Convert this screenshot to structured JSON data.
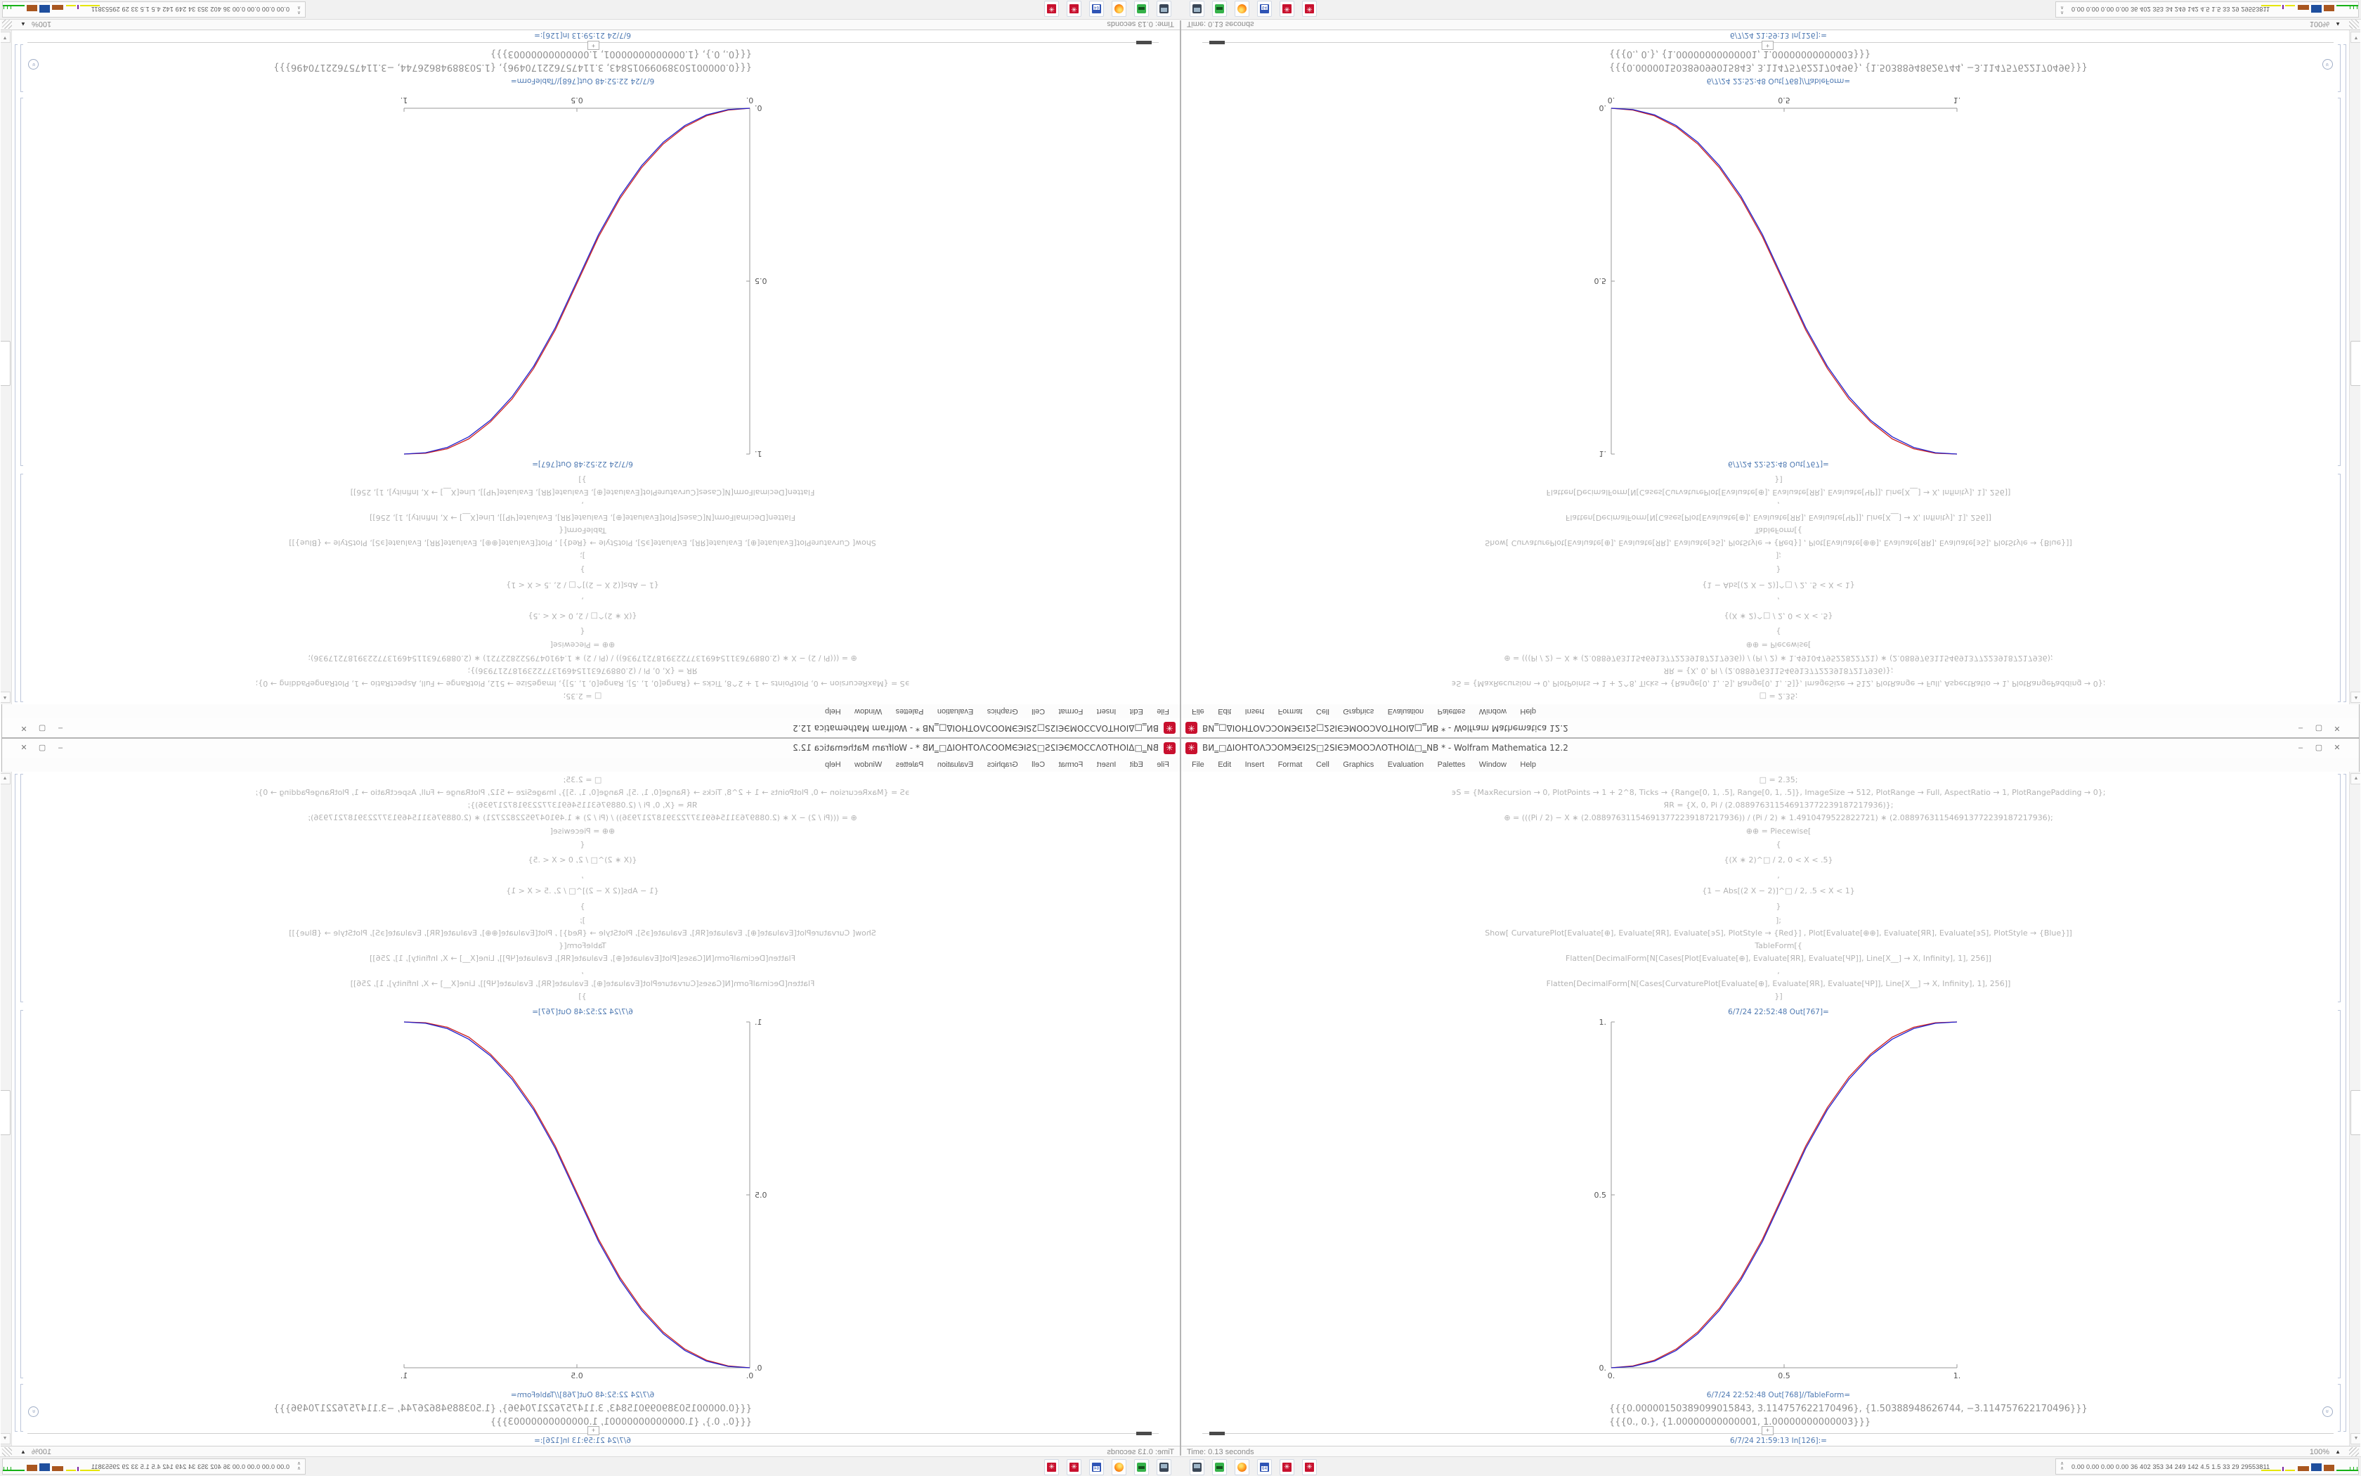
{
  "window": {
    "title": "ВИ‗□ΔΙΟΗΤΟΛƆƆΟΜЭЄΙ2Ѕ□2ЅΙЄЭΜΟΟƆΛΟΤΗΟΙΔ□‗NB * - Wolfram Mathematica 12.2",
    "menu": [
      "File",
      "Edit",
      "Insert",
      "Format",
      "Cell",
      "Graphics",
      "Evaluation",
      "Palettes",
      "Window",
      "Help"
    ],
    "code_lines": [
      "□ = 2.35;",
      "϶Ѕ = {MaxRecursion → 0, PlotPoints → 1 + 2^8, Ticks → {Range[0, 1, .5], Range[0, 1, .5]}, ImageSize → 512, PlotRange → Full, AspectRatio → 1, PlotRangePadding → 0};",
      "ЯR = {X, 0, Pi / (2.088976311546913772239187217936)};",
      "⊕ = (((Pi / 2) − X ∗ (2.088976311546913772239187217936)) / (Pi / 2) ∗ 1.4910479522822721) ∗ (2.088976311546913772239187217936);",
      "⊕⊕ = Piecewise[",
      "{",
      "{(X ∗ 2)^□ / 2, 0 < X < .5}",
      ",",
      "{1 − Abs[(2 X − 2)]^□ / 2, .5 < X < 1}",
      "}",
      "];",
      "Show[   CurvaturePlot[Evaluate[⊕], Evaluate[ЯR], Evaluate[϶Ѕ], PlotStyle → {Red}]   ,   Plot[Evaluate[⊕⊕], Evaluate[ЯR], Evaluate[϶Ѕ], PlotStyle → {Blue}]]",
      "TableForm[{",
      "Flatten[DecimalForm[N[Cases[Plot[Evaluate[⊕], Evaluate[ЯR], Evaluate[ЧP]], Line[X__] → X, Infinity], 1], 256]]",
      ",",
      "Flatten[DecimalForm[N[Cases[CurvaturePlot[Evaluate[⊕], Evaluate[ЯR], Evaluate[ЧP]], Line[X__] → X, Infinity], 1], 256]]",
      "}]"
    ],
    "out1_tag": "6/7/24 22:52:48 Out[767]=",
    "out2_tag": "6/7/24 22:52:48 Out[768]//TableForm=",
    "out2_rows": [
      "{{{0.00000150389099015843, 3.114757622170496}, {1.50388948626744, −3.114757622170496}}}",
      "{{{0., 0.}, {1.00000000000001, 1.00000000000003}}}"
    ],
    "next_in_tag": "6/7/24 21:59:13 In[126]:=",
    "status": {
      "time": "Time: 0.13 seconds",
      "zoom": "100%"
    },
    "plot": {
      "type": "line",
      "xlim": [
        0,
        1
      ],
      "ylim": [
        0,
        1
      ],
      "x_ticks": [
        "0.",
        "0.5",
        "1."
      ],
      "y_ticks": [
        "0.",
        "0.5",
        "1."
      ],
      "grid": false,
      "legend": "none",
      "series": [
        {
          "name": "CurvaturePlot (Red)",
          "color": "#cc2020",
          "points": [
            [
              0,
              0
            ],
            [
              0.0625,
              0.0052
            ],
            [
              0.125,
              0.0219
            ],
            [
              0.1875,
              0.0538
            ],
            [
              0.25,
              0.103
            ],
            [
              0.3125,
              0.1715
            ],
            [
              0.375,
              0.2605
            ],
            [
              0.4375,
              0.3723
            ],
            [
              0.5,
              0.507
            ],
            [
              0.5625,
              0.6415
            ],
            [
              0.625,
              0.7525
            ],
            [
              0.6875,
              0.8408
            ],
            [
              0.75,
              0.9069
            ],
            [
              0.8125,
              0.956
            ],
            [
              0.875,
              0.9847
            ],
            [
              0.9375,
              0.9976
            ],
            [
              1,
              1
            ]
          ]
        },
        {
          "name": "Plot (Blue)",
          "color": "#2121cc",
          "points": [
            [
              0,
              0
            ],
            [
              0.0625,
              0.0038
            ],
            [
              0.125,
              0.0192
            ],
            [
              0.1875,
              0.0499
            ],
            [
              0.25,
              0.098
            ],
            [
              0.3125,
              0.1657
            ],
            [
              0.375,
              0.254
            ],
            [
              0.4375,
              0.3654
            ],
            [
              0.5,
              0.5
            ],
            [
              0.5625,
              0.6346
            ],
            [
              0.625,
              0.746
            ],
            [
              0.6875,
              0.8343
            ],
            [
              0.75,
              0.902
            ],
            [
              0.8125,
              0.9501
            ],
            [
              0.875,
              0.9808
            ],
            [
              0.9375,
              0.9962
            ],
            [
              1,
              1
            ]
          ]
        }
      ]
    }
  },
  "icons": {
    "app_gear": "✳",
    "minimize": "–",
    "maximize": "▢",
    "close": "✕",
    "scroll_up": "▲",
    "scroll_down": "▼",
    "plus": "+",
    "zoom_triangle": "▲",
    "collapse_chevrons": "»",
    "tray_chevron": "∧"
  },
  "taskbar": {
    "tray_text": "0.00 0.00 0.00 0.00   36   402  353  34   249  142  4.5  1.5  33   29  29553811"
  },
  "colors": {
    "accent_blue_label": "#4e79b2",
    "code_gray": "#b3b3b3",
    "mathematica_red": "#c8102e",
    "plot_red": "#cc2020",
    "plot_blue": "#2121cc"
  }
}
